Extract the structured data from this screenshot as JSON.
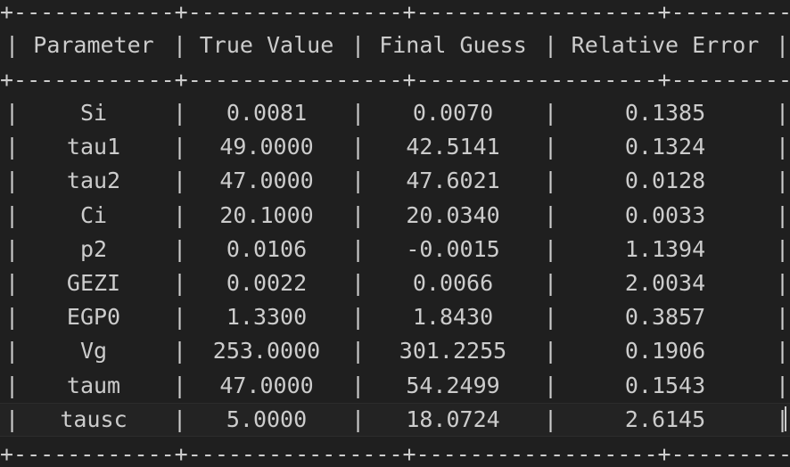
{
  "table": {
    "rule": "+------------+----------------+------------------+---------------------+",
    "headers": [
      "Parameter",
      "True Value",
      "Final Guess",
      "Relative Error"
    ],
    "rows": [
      [
        "Si",
        "0.0081",
        "0.0070",
        "0.1385"
      ],
      [
        "tau1",
        "49.0000",
        "42.5141",
        "0.1324"
      ],
      [
        "tau2",
        "47.0000",
        "47.6021",
        "0.0128"
      ],
      [
        "Ci",
        "20.1000",
        "20.0340",
        "0.0033"
      ],
      [
        "p2",
        "0.0106",
        "-0.0015",
        "1.1394"
      ],
      [
        "GEZI",
        "0.0022",
        "0.0066",
        "2.0034"
      ],
      [
        "EGP0",
        "1.3300",
        "1.8430",
        "0.3857"
      ],
      [
        "Vg",
        "253.0000",
        "301.2255",
        "0.1906"
      ],
      [
        "taum",
        "47.0000",
        "54.2499",
        "0.1543"
      ],
      [
        "tausc",
        "5.0000",
        "18.0724",
        "2.6145"
      ]
    ],
    "pipe": "|"
  },
  "colors": {
    "background": "#1f1f1f",
    "text": "#cccccc"
  }
}
